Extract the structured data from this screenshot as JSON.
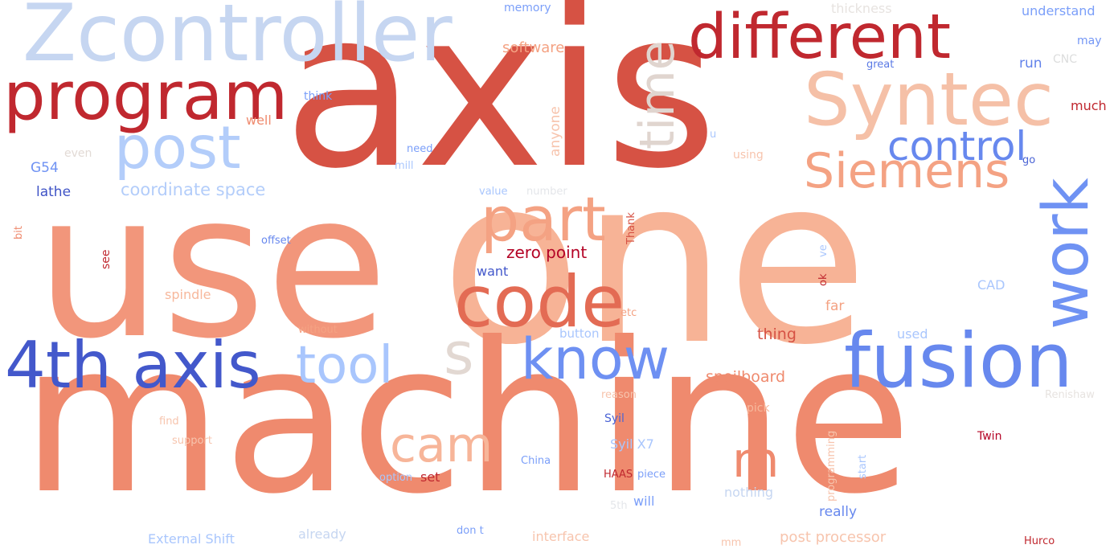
{
  "palette": {
    "dark_red": "#b40426",
    "red": "#d65244",
    "salmon": "#ee8468",
    "peach": "#f5a081",
    "light_peach": "#f7b89c",
    "beige": "#e0d5cf",
    "pale_blue": "#c9d7f0",
    "light_blue": "#aac7fd",
    "blue": "#6788ee",
    "dark_blue": "#3b4cc0"
  },
  "words": [
    {
      "text": "axis",
      "color": "#d65244"
    },
    {
      "text": "use",
      "color": "#f2967b"
    },
    {
      "text": "one",
      "color": "#f7b396"
    },
    {
      "text": "machine",
      "color": "#ef8a6e"
    },
    {
      "text": "Zcontroller",
      "color": "#c6d6f1"
    },
    {
      "text": "different",
      "color": "#c0282f"
    },
    {
      "text": "program",
      "color": "#c0282f"
    },
    {
      "text": "Syntec",
      "color": "#f5c0a7"
    },
    {
      "text": "post",
      "color": "#b3cdfa"
    },
    {
      "text": "time",
      "color": "#e0d5cf"
    },
    {
      "text": "control",
      "color": "#6788ee"
    },
    {
      "text": "Siemens",
      "color": "#f4a283"
    },
    {
      "text": "work",
      "color": "#6f92f3"
    },
    {
      "text": "part",
      "color": "#f4a283"
    },
    {
      "text": "code",
      "color": "#e36b54"
    },
    {
      "text": "4th axis",
      "color": "#4358cb"
    },
    {
      "text": "tool",
      "color": "#a9c6fd"
    },
    {
      "text": "s",
      "color": "#e2d8d2"
    },
    {
      "text": "know",
      "color": "#6e90f2"
    },
    {
      "text": "fusion",
      "color": "#6788ee"
    },
    {
      "text": "cam",
      "color": "#f7b599"
    },
    {
      "text": "m",
      "color": "#ef8a6e"
    },
    {
      "text": "coordinate space",
      "color": "#b3cdfa"
    },
    {
      "text": "G54",
      "color": "#6f92f3"
    },
    {
      "text": "lathe",
      "color": "#3f53c6"
    },
    {
      "text": "zero point",
      "color": "#b40426"
    },
    {
      "text": "memory",
      "color": "#7b9ff9"
    },
    {
      "text": "thickness",
      "color": "#e7e3e0"
    },
    {
      "text": "understand",
      "color": "#7b9ff9"
    },
    {
      "text": "software",
      "color": "#f4a283"
    },
    {
      "text": "may",
      "color": "#7396f5"
    },
    {
      "text": "great",
      "color": "#5b7ae5"
    },
    {
      "text": "run",
      "color": "#6282ea"
    },
    {
      "text": "CNC",
      "color": "#dcdddd"
    },
    {
      "text": "much",
      "color": "#c0282f"
    },
    {
      "text": "think",
      "color": "#7b9ff9"
    },
    {
      "text": "well",
      "color": "#ef8a6e"
    },
    {
      "text": "anyone",
      "color": "#f7c4ad"
    },
    {
      "text": "u",
      "color": "#aac7fd"
    },
    {
      "text": "even",
      "color": "#e2dad5"
    },
    {
      "text": "need",
      "color": "#7b9ff9"
    },
    {
      "text": "mill",
      "color": "#aac7fd"
    },
    {
      "text": "using",
      "color": "#f7c4ad"
    },
    {
      "text": "go",
      "color": "#4b64d5"
    },
    {
      "text": "value",
      "color": "#a9c6fd"
    },
    {
      "text": "number",
      "color": "#e4e6ea"
    },
    {
      "text": "bit",
      "color": "#ef8a6e"
    },
    {
      "text": "offset",
      "color": "#6788ee"
    },
    {
      "text": "Thank",
      "color": "#d65244"
    },
    {
      "text": "see",
      "color": "#c0282f"
    },
    {
      "text": "want",
      "color": "#4358cb"
    },
    {
      "text": "ok",
      "color": "#c0282f"
    },
    {
      "text": "ve",
      "color": "#aac7fd"
    },
    {
      "text": "spindle",
      "color": "#f7b89c"
    },
    {
      "text": "far",
      "color": "#f4a283"
    },
    {
      "text": "CAD",
      "color": "#a9c6fd"
    },
    {
      "text": "etc",
      "color": "#f4a283"
    },
    {
      "text": "without",
      "color": "#f4a283"
    },
    {
      "text": "button",
      "color": "#a9c6fd"
    },
    {
      "text": "thing",
      "color": "#d65244"
    },
    {
      "text": "used",
      "color": "#a9c6fd"
    },
    {
      "text": "spoilboard",
      "color": "#ef8a6e"
    },
    {
      "text": "reason",
      "color": "#f7c4ad"
    },
    {
      "text": "Renishaw",
      "color": "#e7e3e0"
    },
    {
      "text": "find",
      "color": "#f7c4ad"
    },
    {
      "text": "Syil",
      "color": "#4b64d5"
    },
    {
      "text": "pick",
      "color": "#f7b89c"
    },
    {
      "text": "support",
      "color": "#f7c4ad"
    },
    {
      "text": "Syil X7",
      "color": "#a9c6fd"
    },
    {
      "text": "programming",
      "color": "#f7c4ad"
    },
    {
      "text": "start",
      "color": "#a9c6fd"
    },
    {
      "text": "Twin",
      "color": "#b40426"
    },
    {
      "text": "China",
      "color": "#7b9ff9"
    },
    {
      "text": "HAAS",
      "color": "#c0282f"
    },
    {
      "text": "piece",
      "color": "#7b9ff9"
    },
    {
      "text": "option",
      "color": "#a9c6fd"
    },
    {
      "text": "set",
      "color": "#c0282f"
    },
    {
      "text": "nothing",
      "color": "#c6d6f1"
    },
    {
      "text": "5th",
      "color": "#e4e6ea"
    },
    {
      "text": "will",
      "color": "#7b9ff9"
    },
    {
      "text": "really",
      "color": "#6788ee"
    },
    {
      "text": "External Shift",
      "color": "#a9c6fd"
    },
    {
      "text": "already",
      "color": "#c6d6f1"
    },
    {
      "text": "don t",
      "color": "#7b9ff9"
    },
    {
      "text": "interface",
      "color": "#f7c4ad"
    },
    {
      "text": "mm",
      "color": "#f7c4ad"
    },
    {
      "text": "post processor",
      "color": "#f7c4ad"
    },
    {
      "text": "Hurco",
      "color": "#c0282f"
    }
  ]
}
